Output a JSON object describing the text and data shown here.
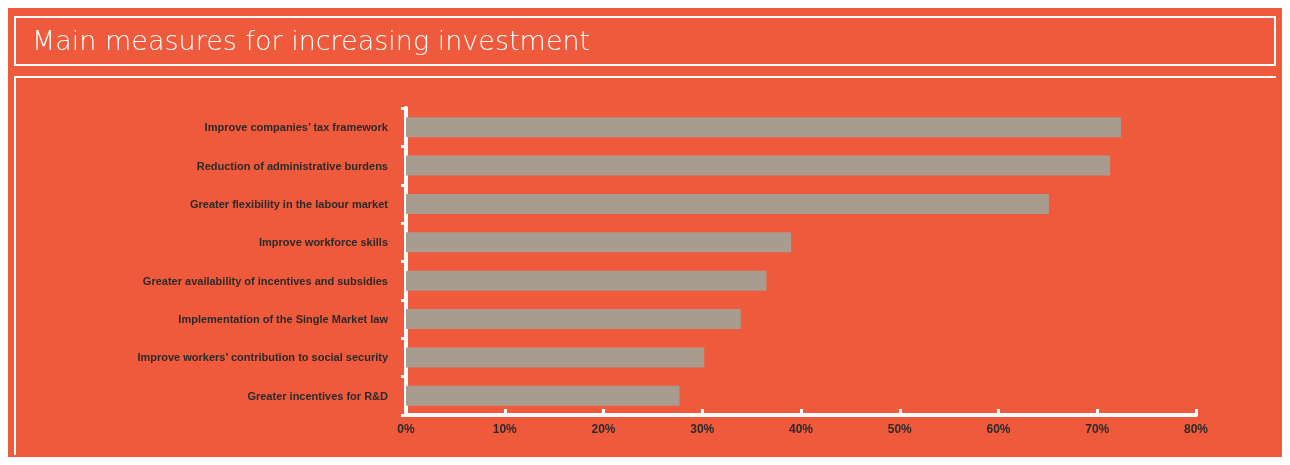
{
  "chart_data": {
    "type": "bar",
    "orientation": "horizontal",
    "title": "Main measures for increasing investment",
    "categories": [
      "Improve companies’ tax framework",
      "Reduction of administrative burdens",
      "Greater flexibility in the labour market",
      "Improve workforce skills",
      "Greater availability of incentives and subsidies",
      "Implementation of the Single Market law",
      "Improve workers’ contribution to social security",
      "Greater incentives for R&D"
    ],
    "values": [
      72.4,
      71.3,
      65.1,
      39.0,
      36.5,
      33.9,
      30.2,
      27.7
    ],
    "color": "#a89b90",
    "xlim": [
      0,
      80
    ],
    "xticks": [
      {
        "value": 0,
        "label": "0%"
      },
      {
        "value": 10,
        "label": "10%"
      },
      {
        "value": 20,
        "label": "20%"
      },
      {
        "value": 30,
        "label": "30%"
      },
      {
        "value": 40,
        "label": "40%"
      },
      {
        "value": 50,
        "label": "50%"
      },
      {
        "value": 60,
        "label": "60%"
      },
      {
        "value": 70,
        "label": "70%"
      },
      {
        "value": 80,
        "label": "80%"
      }
    ],
    "grid": false
  }
}
